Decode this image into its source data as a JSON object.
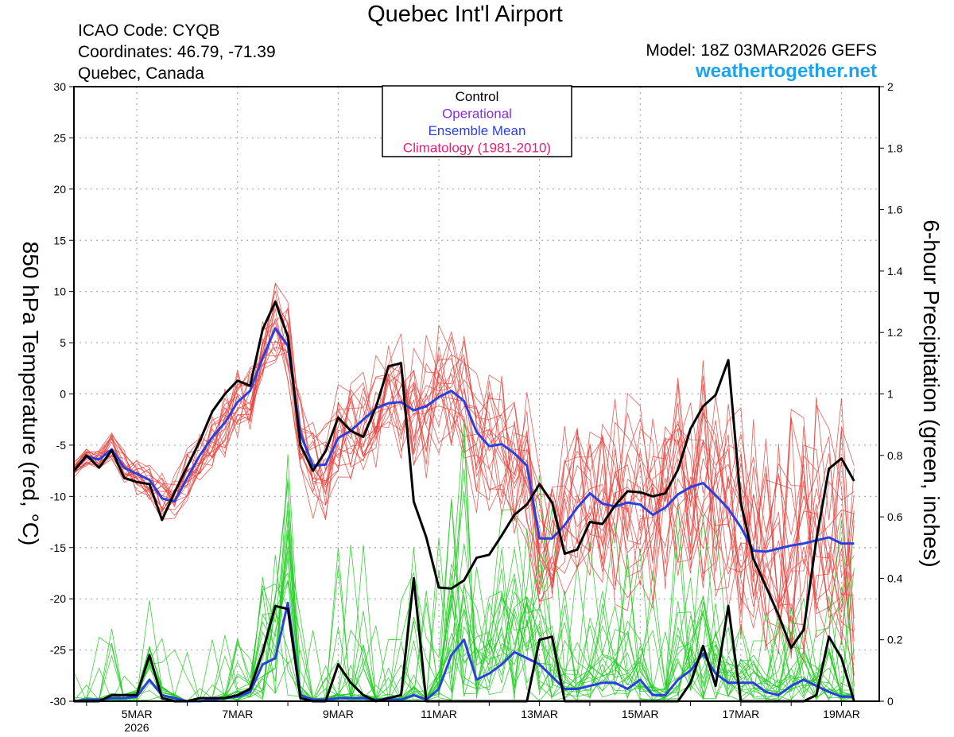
{
  "header": {
    "title": "Quebec Int'l Airport",
    "icao": "ICAO Code: CYQB",
    "coordinates": "Coordinates: 46.79, -71.39",
    "location": "Quebec, Canada",
    "model": "Model: 18Z 03MAR2026 GEFS",
    "site": "weathertogether.net"
  },
  "chart_data": {
    "type": "line",
    "xlabel": "",
    "ylabel": "850 hPa Temperature (red, °C)",
    "y2label": "6-hour Precipitation (green, inches)",
    "ylim": [
      -30,
      30
    ],
    "y2lim": [
      0,
      2
    ],
    "grid": true,
    "xticks": [
      "5MAR",
      "7MAR",
      "9MAR",
      "11MAR",
      "13MAR",
      "15MAR",
      "17MAR",
      "19MAR"
    ],
    "xtick_year": "2026",
    "xlim_days": [
      3.75,
      19.75
    ],
    "yticks": [
      -30,
      -25,
      -20,
      -15,
      -10,
      -5,
      0,
      5,
      10,
      15,
      20,
      25,
      30
    ],
    "y2ticks": [
      "0",
      "0.2",
      "0.4",
      "0.6",
      "0.8",
      "1",
      "1.2",
      "1.4",
      "1.6",
      "1.8",
      "2"
    ],
    "legend": {
      "placement": "top-center",
      "entries": [
        {
          "label": "Control",
          "color": "#000000"
        },
        {
          "label": "Operational",
          "color": "#8a2be2"
        },
        {
          "label": "Ensemble Mean",
          "color": "#2b3fe0"
        },
        {
          "label": "Climatology (1981-2010)",
          "color": "#e0207a"
        }
      ]
    },
    "colors": {
      "temperature_members": "#e8403a",
      "precip_members": "#22cc22",
      "control": "#000000",
      "mean": "#2b3fe0"
    },
    "x_start": "2026-03-03 18Z",
    "x_step_hours": 6,
    "series": [
      {
        "name": "Control",
        "axis": "temperature",
        "values": [
          -7.5,
          -6,
          -7.2,
          -5.5,
          -8.2,
          -8.6,
          -8.8,
          -12.3,
          -9.6,
          -7.1,
          -4.6,
          -1.7,
          0,
          1.3,
          0.8,
          6.3,
          9,
          5.6,
          -5,
          -7.5,
          -5.6,
          -2.3,
          -3.6,
          -4.2,
          -1.3,
          2.7,
          3,
          -10.5,
          -14,
          -18.9,
          -19,
          -18.2,
          -16,
          -15.7,
          -13.8,
          -11.8,
          -10.8,
          -8.8,
          -10.6,
          -15.6,
          -15.2,
          -12.5,
          -12.7,
          -10.9,
          -9.5,
          -9.6,
          -10,
          -9.7,
          -7.4,
          -3.4,
          -1.2,
          -0.1,
          3.3,
          -10.6,
          -16.1,
          -18.8,
          -21.6,
          -24.8,
          -23,
          -14.2,
          -7.3,
          -6.3,
          -8.5
        ]
      },
      {
        "name": "Ensemble Mean",
        "axis": "temperature",
        "values": [
          -7.5,
          -6.1,
          -6.4,
          -5.4,
          -7.2,
          -7.8,
          -8.4,
          -10.2,
          -10.5,
          -8.2,
          -6,
          -4.2,
          -2.8,
          -0.8,
          0.3,
          3.5,
          6.4,
          4.7,
          -3.9,
          -7,
          -6.9,
          -4.3,
          -3.6,
          -2.5,
          -1.4,
          -0.9,
          -0.8,
          -1.6,
          -1.2,
          -0.3,
          0.3,
          -0.7,
          -3.7,
          -5.1,
          -4.9,
          -5.8,
          -7,
          -14.1,
          -14.1,
          -12.8,
          -11.1,
          -9.7,
          -10.7,
          -11,
          -10.6,
          -10.8,
          -11.8,
          -11.1,
          -9.8,
          -9.1,
          -8.7,
          -9.9,
          -11.2,
          -13,
          -15.3,
          -15.4,
          -15.1,
          -14.8,
          -14.6,
          -14.3,
          -14,
          -14.6,
          -14.6
        ]
      },
      {
        "name": "Control",
        "axis": "precipitation",
        "values": [
          0,
          0,
          0,
          0.02,
          0.02,
          0.02,
          0.15,
          0.01,
          0,
          0,
          0.01,
          0.01,
          0.01,
          0.02,
          0.04,
          0.16,
          0.31,
          0.3,
          0.01,
          0,
          0,
          0.12,
          0.06,
          0.02,
          0,
          0.01,
          0.02,
          0.4,
          0,
          0,
          0,
          0,
          0,
          0,
          0,
          0,
          0,
          0.2,
          0.21,
          0,
          0,
          0,
          0,
          0,
          0,
          0,
          0,
          0,
          0,
          0.06,
          0.18,
          0.05,
          0.31,
          0,
          0,
          0,
          0,
          0,
          0,
          0.02,
          0.21,
          0.14,
          0
        ]
      },
      {
        "name": "Ensemble Mean",
        "axis": "precipitation",
        "values": [
          0,
          0.005,
          0.005,
          0.01,
          0.01,
          0.015,
          0.07,
          0.02,
          0.01,
          0,
          0,
          0.005,
          0.01,
          0.015,
          0.03,
          0.12,
          0.14,
          0.32,
          0.02,
          0.005,
          0.005,
          0.01,
          0.01,
          0.01,
          0.005,
          0.005,
          0.005,
          0.02,
          0.005,
          0.04,
          0.15,
          0.2,
          0.07,
          0.09,
          0.12,
          0.16,
          0.14,
          0.12,
          0.08,
          0.04,
          0.04,
          0.05,
          0.06,
          0.06,
          0.04,
          0.07,
          0.02,
          0.02,
          0.07,
          0.1,
          0.155,
          0.09,
          0.06,
          0.06,
          0.06,
          0.03,
          0.02,
          0.05,
          0.07,
          0.05,
          0.03,
          0.015,
          0.015
        ]
      }
    ]
  }
}
